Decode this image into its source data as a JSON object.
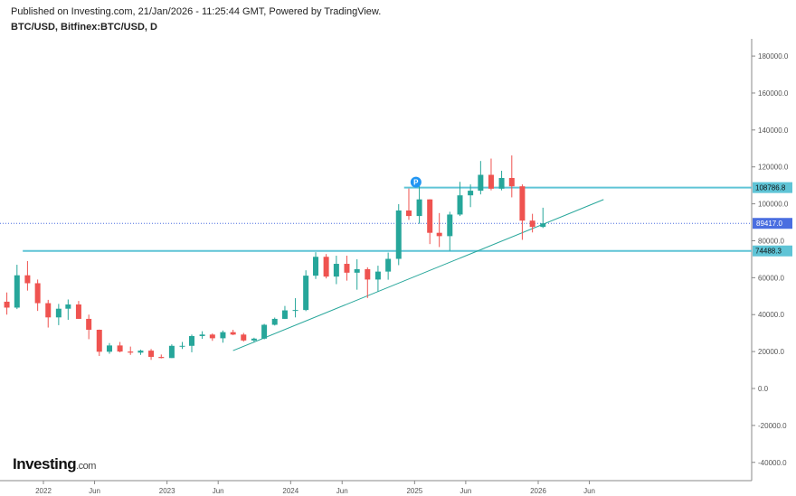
{
  "header": {
    "published": "Published on Investing.com, 21/Jan/2026 - 11:25:44 GMT, Powered by TradingView.",
    "symbol": "BTC/USD, Bitfinex:BTC/USD, D"
  },
  "logo": {
    "main": "Investing",
    "suffix": ".com"
  },
  "chart_data": {
    "type": "candlestick",
    "interval": "D",
    "colors": {
      "up": "#26a69a",
      "down": "#ef5350",
      "levels": "#5fc4d6",
      "last_price": "#4a6ee0",
      "trendline": "#26a69a"
    },
    "ylim": [
      -45000,
      190000
    ],
    "y_ticks": [
      180000,
      160000,
      140000,
      120000,
      100000,
      80000,
      60000,
      40000,
      20000,
      0,
      -20000,
      -40000
    ],
    "y_tick_labels": [
      "180000.0",
      "160000.0",
      "140000.0",
      "120000.0",
      "100000.0",
      "80000.0",
      "60000.0",
      "40000.0",
      "20000.0",
      "0.0",
      "-20000.0",
      "-40000.0"
    ],
    "x_ticks": [
      {
        "label": "2022",
        "date": "2022-01-01"
      },
      {
        "label": "Jun",
        "date": "2022-06-01"
      },
      {
        "label": "2023",
        "date": "2023-01-01"
      },
      {
        "label": "Jun",
        "date": "2023-06-01"
      },
      {
        "label": "2024",
        "date": "2024-01-01"
      },
      {
        "label": "Jun",
        "date": "2024-06-01"
      },
      {
        "label": "2025",
        "date": "2025-01-01"
      },
      {
        "label": "Jun",
        "date": "2025-06-01"
      },
      {
        "label": "2026",
        "date": "2026-01-01"
      },
      {
        "label": "Jun",
        "date": "2026-06-01"
      }
    ],
    "ohlc": [
      [
        "2021-09-15",
        47000,
        52000,
        40000,
        43800
      ],
      [
        "2021-10-15",
        43800,
        67000,
        43000,
        61300
      ],
      [
        "2021-11-15",
        61300,
        69000,
        53000,
        57000
      ],
      [
        "2021-12-15",
        57000,
        59000,
        42000,
        46200
      ],
      [
        "2022-01-15",
        46200,
        48000,
        33000,
        38500
      ],
      [
        "2022-02-15",
        38500,
        45800,
        34300,
        43200
      ],
      [
        "2022-03-15",
        43200,
        48200,
        37200,
        45500
      ],
      [
        "2022-04-15",
        45500,
        47400,
        37700,
        37700
      ],
      [
        "2022-05-15",
        37700,
        40000,
        26700,
        31800
      ],
      [
        "2022-06-15",
        31800,
        31900,
        17600,
        19900
      ],
      [
        "2022-07-15",
        19900,
        24600,
        18800,
        23300
      ],
      [
        "2022-08-15",
        23300,
        25200,
        19600,
        20000
      ],
      [
        "2022-09-15",
        20000,
        22700,
        18200,
        19400
      ],
      [
        "2022-10-15",
        19400,
        21000,
        18200,
        20500
      ],
      [
        "2022-11-15",
        20500,
        21400,
        15500,
        17100
      ],
      [
        "2022-12-15",
        17100,
        18400,
        16300,
        16500
      ],
      [
        "2023-01-15",
        16500,
        23900,
        16500,
        23100
      ],
      [
        "2023-02-15",
        23100,
        25200,
        21400,
        23100
      ],
      [
        "2023-03-15",
        23100,
        29200,
        19600,
        28400
      ],
      [
        "2023-04-15",
        28400,
        31000,
        26900,
        29200
      ],
      [
        "2023-05-15",
        29200,
        29800,
        25800,
        27200
      ],
      [
        "2023-06-15",
        27200,
        31400,
        24800,
        30500
      ],
      [
        "2023-07-15",
        30500,
        31800,
        28900,
        29200
      ],
      [
        "2023-08-15",
        29200,
        30100,
        25400,
        26000
      ],
      [
        "2023-09-15",
        26000,
        27500,
        24900,
        27000
      ],
      [
        "2023-10-15",
        27000,
        35000,
        26600,
        34500
      ],
      [
        "2023-11-15",
        34500,
        38400,
        34100,
        37700
      ],
      [
        "2023-12-15",
        37700,
        44700,
        37600,
        42300
      ],
      [
        "2024-01-15",
        42300,
        48900,
        38500,
        42500
      ],
      [
        "2024-02-15",
        42500,
        64000,
        41900,
        61100
      ],
      [
        "2024-03-15",
        61100,
        73800,
        59300,
        71300
      ],
      [
        "2024-04-15",
        71300,
        72800,
        59600,
        60600
      ],
      [
        "2024-05-15",
        60600,
        71900,
        56500,
        67500
      ],
      [
        "2024-06-15",
        67500,
        71900,
        58400,
        62700
      ],
      [
        "2024-07-15",
        62700,
        70000,
        53500,
        64600
      ],
      [
        "2024-08-15",
        64600,
        65600,
        49000,
        59000
      ],
      [
        "2024-09-15",
        59000,
        66500,
        52500,
        63300
      ],
      [
        "2024-10-15",
        63300,
        73600,
        58900,
        70200
      ],
      [
        "2024-11-15",
        70200,
        99800,
        66800,
        96400
      ],
      [
        "2024-12-15",
        96400,
        108300,
        91300,
        93400
      ],
      [
        "2025-01-15",
        93400,
        109600,
        89200,
        102400
      ],
      [
        "2025-02-15",
        102400,
        102500,
        78200,
        84300
      ],
      [
        "2025-03-15",
        84300,
        95000,
        76600,
        82500
      ],
      [
        "2025-04-15",
        82500,
        95700,
        74500,
        94200
      ],
      [
        "2025-05-15",
        94200,
        111900,
        93400,
        104600
      ],
      [
        "2025-06-15",
        104600,
        110500,
        98200,
        107100
      ],
      [
        "2025-07-15",
        107100,
        123200,
        105100,
        115700
      ],
      [
        "2025-08-15",
        115700,
        124500,
        107300,
        108200
      ],
      [
        "2025-09-15",
        108200,
        117900,
        107300,
        114000
      ],
      [
        "2025-10-15",
        114000,
        126200,
        103500,
        109500
      ],
      [
        "2025-11-15",
        109500,
        110500,
        80500,
        90900
      ],
      [
        "2025-12-15",
        90900,
        94600,
        84500,
        87500
      ],
      [
        "2026-01-15",
        87500,
        97900,
        86900,
        89417
      ]
    ],
    "horizontal_levels": [
      {
        "value": 108786.8,
        "label": "108786.8",
        "from": "2024-12-01"
      },
      {
        "value": 74488.3,
        "label": "74488.3",
        "from": "2021-11-01"
      }
    ],
    "last_price": {
      "value": 89417.0,
      "label": "89417.0"
    },
    "trendline": {
      "start": [
        "2023-07-15",
        20500
      ],
      "end": [
        "2026-07-13",
        102300
      ]
    },
    "marker": {
      "label": "P",
      "date": "2025-01-05",
      "value": 108786.8
    }
  }
}
